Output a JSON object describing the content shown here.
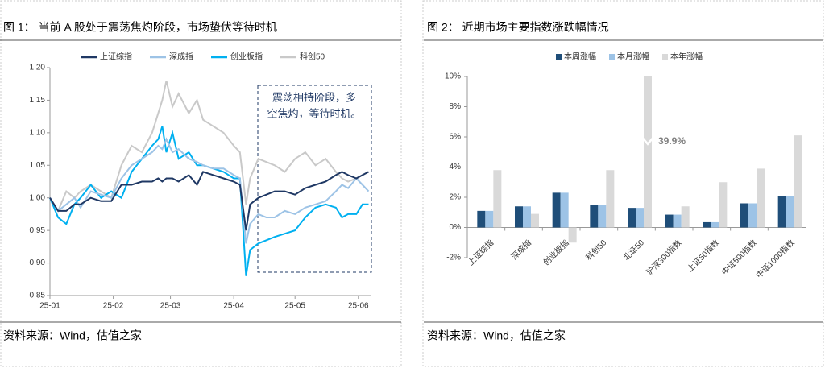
{
  "chart_data": [
    {
      "type": "line",
      "title": "图 1：  当前 A 股处于震荡焦灼阶段，市场蛰伏等待时机",
      "x": [
        0,
        4,
        8,
        12,
        15,
        20,
        25,
        30,
        35,
        40,
        45,
        50,
        53,
        55,
        57,
        60,
        63,
        68,
        72,
        75,
        80,
        85,
        90,
        93,
        96,
        98,
        102,
        106,
        110,
        115,
        120,
        125,
        130,
        135,
        140,
        143,
        146,
        150,
        153,
        156
      ],
      "xlim": [
        0,
        157
      ],
      "xticks": [
        {
          "value": 0,
          "label": "25-01"
        },
        {
          "value": 31,
          "label": "25-02"
        },
        {
          "value": 59,
          "label": "25-03"
        },
        {
          "value": 90,
          "label": "25-04"
        },
        {
          "value": 120,
          "label": "25-05"
        },
        {
          "value": 151,
          "label": "25-06"
        }
      ],
      "ylim": [
        0.85,
        1.2
      ],
      "yticks": [
        0.85,
        {
          "value": 0.9,
          "label": "0.90"
        },
        0.95,
        {
          "value": 1.0,
          "label": "1.00"
        },
        1.05,
        {
          "value": 1.1,
          "label": "1.10"
        },
        1.15,
        {
          "value": 1.2,
          "label": "1.20"
        }
      ],
      "series": [
        {
          "name": "上证综指",
          "color": "#1f3864",
          "values": [
            1.0,
            0.98,
            0.98,
            0.99,
            0.99,
            1.0,
            0.995,
            0.995,
            1.02,
            1.02,
            1.025,
            1.025,
            1.03,
            1.025,
            1.03,
            1.03,
            1.025,
            1.035,
            1.02,
            1.04,
            1.035,
            1.03,
            1.025,
            1.02,
            0.95,
            0.99,
            1.0,
            1.005,
            1.01,
            1.01,
            1.005,
            1.015,
            1.02,
            1.025,
            1.035,
            1.04,
            1.035,
            1.03,
            1.035,
            1.04
          ]
        },
        {
          "name": "深成指",
          "color": "#9dc3e6",
          "values": [
            1.0,
            0.98,
            0.99,
            1.0,
            0.985,
            1.01,
            1.005,
            1.0,
            1.03,
            1.05,
            1.06,
            1.07,
            1.08,
            1.075,
            1.09,
            1.07,
            1.075,
            1.06,
            1.055,
            1.05,
            1.045,
            1.045,
            1.035,
            1.03,
            0.93,
            0.96,
            0.975,
            0.97,
            0.97,
            0.98,
            0.975,
            0.985,
            0.99,
            0.995,
            1.01,
            1.02,
            1.015,
            1.03,
            1.02,
            1.01
          ]
        },
        {
          "name": "创业板指",
          "color": "#00b0f0",
          "values": [
            1.0,
            0.97,
            0.96,
            0.99,
            1.0,
            1.02,
            1.0,
            1.01,
            1.0,
            1.04,
            1.06,
            1.08,
            1.09,
            1.11,
            1.07,
            1.1,
            1.06,
            1.07,
            1.05,
            1.05,
            1.045,
            1.04,
            1.03,
            1.03,
            0.88,
            0.92,
            0.93,
            0.935,
            0.94,
            0.945,
            0.95,
            0.97,
            0.985,
            0.99,
            0.985,
            0.97,
            0.975,
            0.975,
            0.99,
            0.99
          ]
        },
        {
          "name": "科创50",
          "color": "#c9c9c9",
          "values": [
            1.0,
            0.98,
            1.01,
            1.0,
            1.01,
            1.02,
            1.01,
            1.0,
            1.05,
            1.08,
            1.07,
            1.1,
            1.13,
            1.15,
            1.18,
            1.14,
            1.16,
            1.13,
            1.15,
            1.12,
            1.11,
            1.1,
            1.08,
            1.07,
            0.99,
            1.03,
            1.06,
            1.055,
            1.05,
            1.04,
            1.06,
            1.07,
            1.05,
            1.06,
            1.04,
            1.03,
            1.025,
            1.03,
            1.035,
            1.04
          ]
        }
      ],
      "annotation": [
        "震荡相持阶段，多",
        "空焦灼，等待时机。"
      ],
      "source": "资料来源：Wind，估值之家"
    },
    {
      "type": "bar",
      "title": "图 2：  近期市场主要指数涨跌幅情况",
      "categories": [
        "上证综指",
        "深成指",
        "创业板指",
        "科创50",
        "北证50",
        "沪深300指数",
        "上证50指数",
        "中证500指数",
        "中证1000指数"
      ],
      "ylim": [
        -2,
        10
      ],
      "yticks": [
        {
          "value": -2,
          "label": "-2%"
        },
        {
          "value": 0,
          "label": "0%"
        },
        {
          "value": 2,
          "label": "2%"
        },
        {
          "value": 4,
          "label": "4%"
        },
        {
          "value": 6,
          "label": "6%"
        },
        {
          "value": 8,
          "label": "8%"
        },
        {
          "value": 10,
          "label": "10%"
        }
      ],
      "series": [
        {
          "name": "本周涨幅",
          "color": "#1f4e79",
          "values": [
            1.1,
            1.4,
            2.3,
            1.5,
            1.3,
            0.85,
            0.35,
            1.6,
            2.1
          ]
        },
        {
          "name": "本月涨幅",
          "color": "#9dc3e6",
          "values": [
            1.1,
            1.4,
            2.3,
            1.5,
            1.3,
            0.85,
            0.35,
            1.6,
            2.1
          ]
        },
        {
          "name": "本年涨幅",
          "color": "#d9d9d9",
          "values": [
            3.8,
            0.9,
            -1.0,
            3.8,
            39.9,
            1.4,
            3.0,
            3.9,
            6.1
          ],
          "value_labels": [
            null,
            null,
            null,
            null,
            "39.9%",
            null,
            null,
            null,
            null
          ]
        }
      ],
      "source": "资料来源：Wind，估值之家"
    }
  ]
}
